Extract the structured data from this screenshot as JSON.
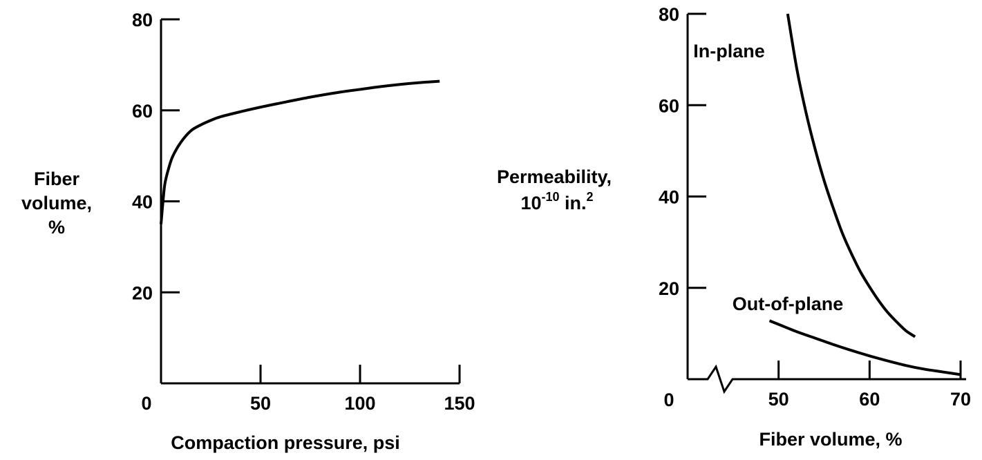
{
  "chart_data": [
    {
      "type": "line",
      "xlabel": "Compaction pressure, psi",
      "ylabel_lines": [
        "Fiber",
        "volume,",
        "%"
      ],
      "xlim": [
        0,
        150
      ],
      "ylim": [
        0,
        80
      ],
      "x_ticks": [
        0,
        50,
        100,
        150
      ],
      "y_ticks": [
        20,
        40,
        60,
        80
      ],
      "x_tick_labels": [
        "0",
        "50",
        "100",
        "150"
      ],
      "y_tick_labels": [
        "20",
        "40",
        "60",
        "80"
      ],
      "grid": false,
      "series": [
        {
          "x": [
            0,
            1,
            2,
            4,
            6,
            10,
            15,
            20,
            25,
            30,
            40,
            50,
            60,
            75,
            90,
            100,
            110,
            120,
            130,
            140
          ],
          "y": [
            35,
            40,
            44,
            47.5,
            50,
            53,
            55.5,
            56.8,
            57.8,
            58.6,
            59.7,
            60.7,
            61.6,
            62.9,
            64,
            64.6,
            65.2,
            65.7,
            66.1,
            66.4
          ]
        }
      ]
    },
    {
      "type": "line",
      "xlabel": "Fiber volume, %",
      "ylabel_main": "Permeability,",
      "ylabel_unit_base": "10",
      "ylabel_unit_exp": "-10",
      "ylabel_unit_mid": " in.",
      "ylabel_unit_sq": "2",
      "xlim": [
        40,
        70
      ],
      "ylim": [
        0,
        80
      ],
      "x_origin_label": "0",
      "x_ticks": [
        50,
        60,
        70
      ],
      "y_ticks": [
        20,
        40,
        60,
        80
      ],
      "x_tick_labels": [
        "50",
        "60",
        "70"
      ],
      "y_tick_labels": [
        "20",
        "40",
        "60",
        "80"
      ],
      "axis_break": true,
      "grid": false,
      "series": [
        {
          "label": "In-plane",
          "x": [
            51,
            52,
            53,
            54,
            55,
            56,
            57,
            58,
            59,
            60,
            61,
            62,
            63,
            64,
            65
          ],
          "y": [
            80,
            68,
            58.5,
            50.5,
            43.5,
            37.5,
            32,
            27.5,
            23.5,
            20.2,
            17.2,
            14.6,
            12.5,
            10.6,
            9.3
          ]
        },
        {
          "label": "Out-of-plane",
          "x": [
            49,
            50,
            52,
            54,
            56,
            58,
            60,
            62,
            64,
            66,
            68,
            70
          ],
          "y": [
            12.8,
            12.0,
            10.4,
            9.0,
            7.6,
            6.3,
            5.1,
            4.0,
            3.0,
            2.2,
            1.6,
            1.0
          ]
        }
      ]
    }
  ]
}
